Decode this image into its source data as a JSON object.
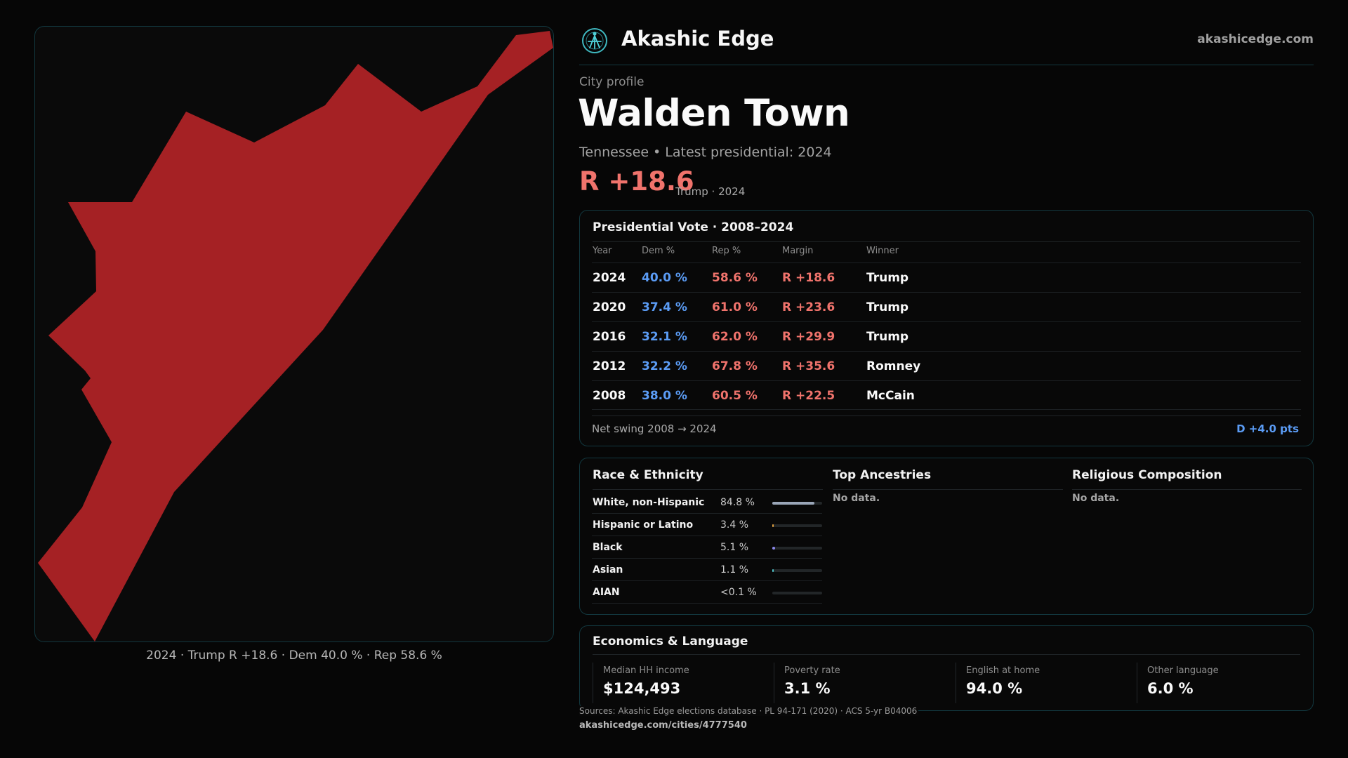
{
  "brand": {
    "name": "Akashic Edge",
    "site": "akashicedge.com"
  },
  "profile": {
    "kicker": "City profile",
    "title": "Walden Town",
    "subtitle": "Tennessee • Latest presidential: 2024",
    "margin": "R +18.6",
    "margin_note": "Trump · 2024"
  },
  "map": {
    "caption": "2024 · Trump R +18.6 · Dem 40.0 % · Rep 58.6 %",
    "fill_color": "#a52124"
  },
  "vote": {
    "title": "Presidential Vote · 2008–2024",
    "headers": {
      "year": "Year",
      "dem": "Dem %",
      "rep": "Rep %",
      "margin": "Margin",
      "winner": "Winner"
    },
    "rows": [
      {
        "year": "2024",
        "dem": "40.0 %",
        "rep": "58.6 %",
        "margin": "R +18.6",
        "winner": "Trump"
      },
      {
        "year": "2020",
        "dem": "37.4 %",
        "rep": "61.0 %",
        "margin": "R +23.6",
        "winner": "Trump"
      },
      {
        "year": "2016",
        "dem": "32.1 %",
        "rep": "62.0 %",
        "margin": "R +29.9",
        "winner": "Trump"
      },
      {
        "year": "2012",
        "dem": "32.2 %",
        "rep": "67.8 %",
        "margin": "R +35.6",
        "winner": "Romney"
      },
      {
        "year": "2008",
        "dem": "38.0 %",
        "rep": "60.5 %",
        "margin": "R +22.5",
        "winner": "McCain"
      }
    ],
    "swing_label": "Net swing 2008 → 2024",
    "swing_value": "D +4.0 pts"
  },
  "race": {
    "title": "Race & Ethnicity",
    "rows": [
      {
        "label": "White, non-Hispanic",
        "pct": "84.8 %",
        "share": 0.848,
        "color": "#9aa6b8"
      },
      {
        "label": "Hispanic or Latino",
        "pct": "3.4 %",
        "share": 0.034,
        "color": "#e0a040"
      },
      {
        "label": "Black",
        "pct": "5.1 %",
        "share": 0.051,
        "color": "#8a86e8"
      },
      {
        "label": "Asian",
        "pct": "1.1 %",
        "share": 0.011,
        "color": "#4fc3c8"
      },
      {
        "label": "AIAN",
        "pct": "<0.1 %",
        "share": 0.0,
        "color": "#c07a5a"
      }
    ]
  },
  "ancestries": {
    "title": "Top Ancestries",
    "empty": "No data."
  },
  "religion": {
    "title": "Religious Composition",
    "empty": "No data."
  },
  "economics": {
    "title": "Economics & Language",
    "stats": [
      {
        "label": "Median HH income",
        "value": "$124,493"
      },
      {
        "label": "Poverty rate",
        "value": "3.1 %"
      },
      {
        "label": "English at home",
        "value": "94.0 %"
      },
      {
        "label": "Other language",
        "value": "6.0 %"
      }
    ]
  },
  "footer": {
    "sources": "Sources: Akashic Edge elections database · PL 94-171 (2020) · ACS 5-yr B04006",
    "url": "akashicedge.com/cities/4777540"
  }
}
